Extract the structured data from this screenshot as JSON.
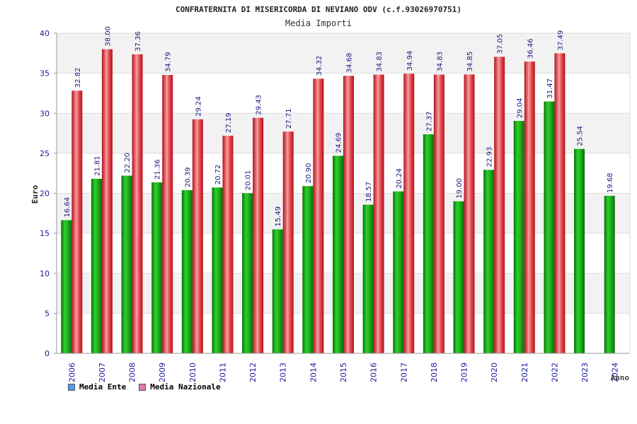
{
  "chart_data": {
    "type": "bar",
    "title": "CONFRATERNITA DI MISERICORDA DI NEVIANO ODV (c.f.93026970751)",
    "subtitle": "Media Importi",
    "xlabel": "Anno",
    "ylabel": "Euro",
    "ylim": [
      0,
      40
    ],
    "yticks": [
      "0",
      "5",
      "10",
      "15",
      "20",
      "25",
      "30",
      "35",
      "40"
    ],
    "grid": true,
    "legend_position": "bottom-left",
    "categories": [
      "2006",
      "2007",
      "2008",
      "2009",
      "2010",
      "2011",
      "2012",
      "2013",
      "2014",
      "2015",
      "2016",
      "2017",
      "2018",
      "2019",
      "2020",
      "2021",
      "2022",
      "2023",
      "2024"
    ],
    "series": [
      {
        "name": "Media Ente",
        "color": "#1aa81a",
        "legend_color": "#5599ee",
        "values": [
          16.64,
          21.81,
          22.2,
          21.36,
          20.39,
          20.72,
          20.01,
          15.49,
          20.9,
          24.69,
          18.57,
          20.24,
          27.37,
          19.0,
          22.93,
          29.04,
          31.47,
          25.54,
          19.68
        ],
        "labels": [
          "16.64",
          "21.81",
          "22.20",
          "21.36",
          "20.39",
          "20.72",
          "20.01",
          "15.49",
          "20.90",
          "24.69",
          "18.57",
          "20.24",
          "27.37",
          "19.00",
          "22.93",
          "29.04",
          "31.47",
          "25.54",
          "19.68"
        ]
      },
      {
        "name": "Media Nazionale",
        "color": "#e8242c",
        "legend_color": "#dd77aa",
        "values": [
          32.82,
          38.0,
          37.36,
          34.79,
          29.24,
          27.19,
          29.43,
          27.71,
          34.32,
          34.68,
          34.83,
          34.94,
          34.83,
          34.85,
          37.05,
          36.46,
          37.49,
          null,
          null
        ],
        "labels": [
          "32.82",
          "38.00",
          "37.36",
          "34.79",
          "29.24",
          "27.19",
          "29.43",
          "27.71",
          "34.32",
          "34.68",
          "34.83",
          "34.94",
          "34.83",
          "34.85",
          "37.05",
          "36.46",
          "37.49",
          null,
          null
        ]
      }
    ]
  }
}
